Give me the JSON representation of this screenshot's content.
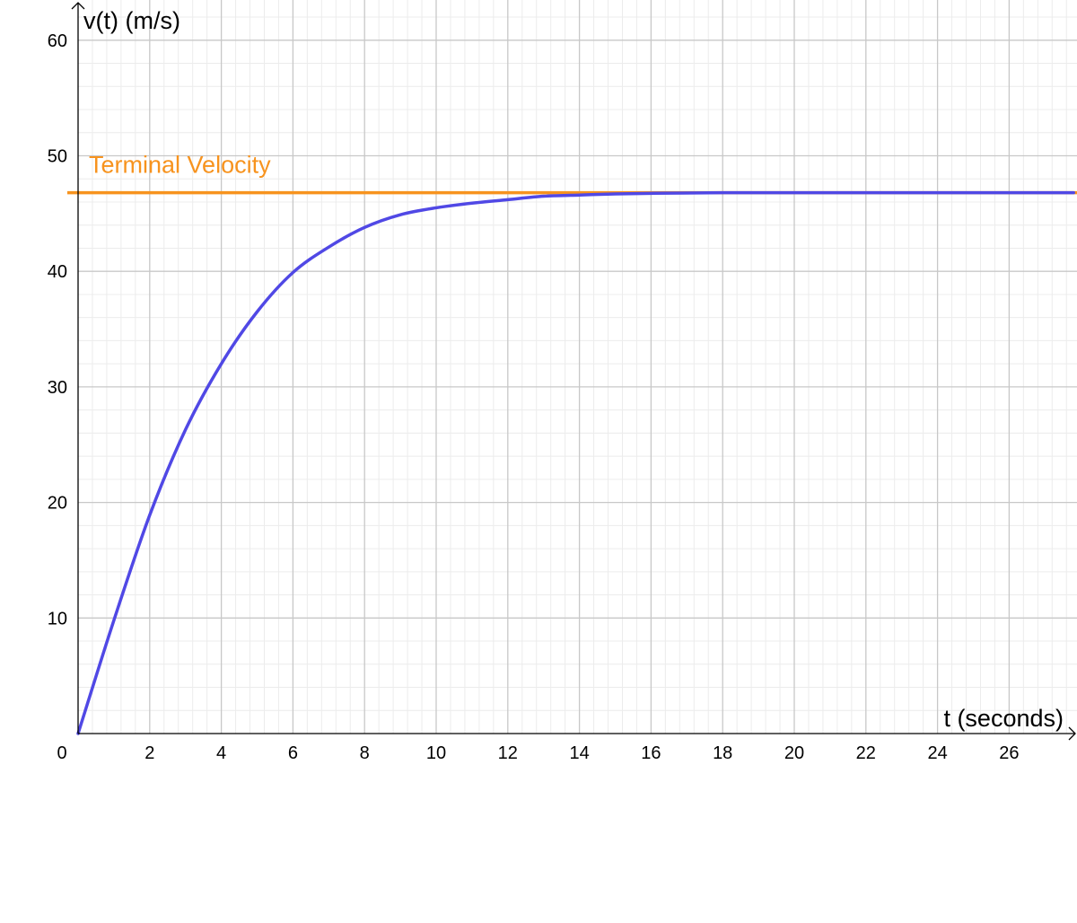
{
  "chart_data": {
    "type": "line",
    "xlabel": "t (seconds)",
    "ylabel": "v(t) (m/s)",
    "xlim": [
      0,
      27.8
    ],
    "ylim": [
      0,
      60
    ],
    "x_ticks": [
      2,
      4,
      6,
      8,
      10,
      12,
      14,
      16,
      18,
      20,
      22,
      24,
      26
    ],
    "y_ticks": [
      10,
      20,
      30,
      40,
      50,
      60
    ],
    "origin_label": "0",
    "grid": true,
    "minor_grid": true,
    "series": [
      {
        "color": "#5048e5",
        "x": [
          0,
          1,
          2,
          3,
          4,
          5,
          6,
          7,
          8,
          9,
          10,
          11,
          12,
          13,
          14,
          15,
          16,
          18,
          20,
          22,
          24,
          26,
          27.8
        ],
        "y": [
          0,
          9.8,
          18.9,
          26.3,
          32.0,
          36.5,
          39.9,
          42.1,
          43.8,
          44.9,
          45.5,
          45.9,
          46.2,
          46.5,
          46.6,
          46.7,
          46.75,
          46.8,
          46.8,
          46.8,
          46.8,
          46.8,
          46.8
        ]
      }
    ],
    "reference_lines": [
      {
        "label": "Terminal Velocity",
        "y": 46.8,
        "color": "#f7931e"
      }
    ]
  }
}
